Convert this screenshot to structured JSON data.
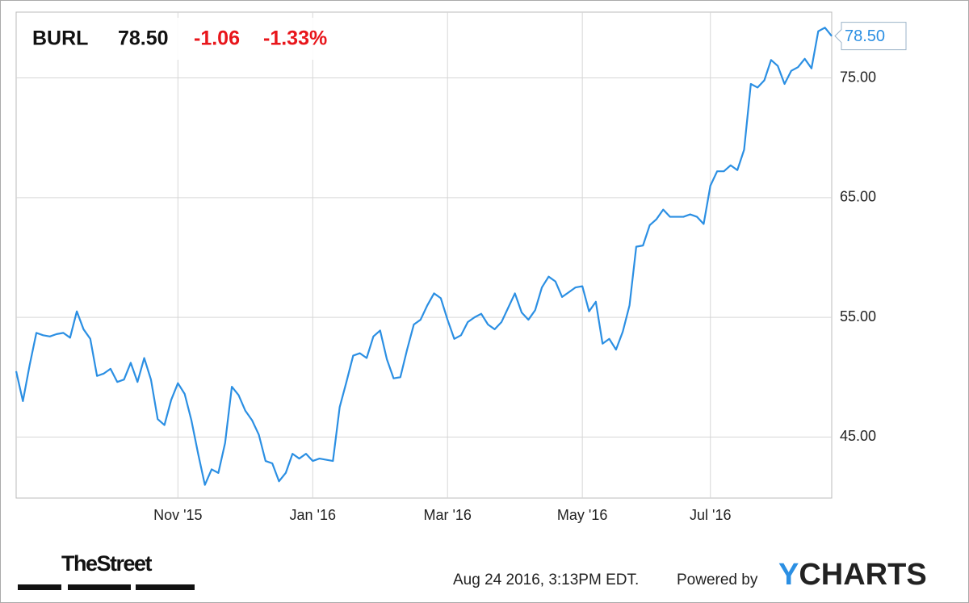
{
  "chart_data": {
    "type": "line",
    "quote": {
      "symbol": "BURL",
      "price": "78.50",
      "change": "-1.06",
      "change_percent": "-1.33%"
    },
    "categories": [
      null,
      null,
      null,
      null,
      null,
      null,
      null,
      null,
      null,
      null,
      null,
      null,
      null,
      null,
      null,
      null,
      null,
      null,
      null,
      null,
      null,
      null,
      null,
      null,
      "Nov '15",
      null,
      null,
      null,
      null,
      null,
      null,
      null,
      null,
      null,
      null,
      null,
      null,
      null,
      null,
      null,
      null,
      null,
      null,
      null,
      "Jan '16",
      null,
      null,
      null,
      null,
      null,
      null,
      null,
      null,
      null,
      null,
      null,
      null,
      null,
      null,
      null,
      null,
      null,
      null,
      null,
      "Mar '16",
      null,
      null,
      null,
      null,
      null,
      null,
      null,
      null,
      null,
      null,
      null,
      null,
      null,
      null,
      null,
      null,
      null,
      null,
      null,
      "May '16",
      null,
      null,
      null,
      null,
      null,
      null,
      null,
      null,
      null,
      null,
      null,
      null,
      null,
      null,
      null,
      null,
      null,
      null,
      "Jul '16",
      null,
      null,
      null,
      null,
      null,
      null,
      null,
      null,
      null,
      null,
      null,
      null,
      null,
      null,
      null,
      null,
      null,
      null
    ],
    "series": [
      {
        "name": "BURL",
        "color": "#2b8fe3",
        "values": [
          50.5,
          48.0,
          51.0,
          53.7,
          53.5,
          53.4,
          53.6,
          53.7,
          53.3,
          55.5,
          54.0,
          53.2,
          50.1,
          50.3,
          50.7,
          49.6,
          49.8,
          51.2,
          49.6,
          51.6,
          49.8,
          46.5,
          46.0,
          48.1,
          49.5,
          48.6,
          46.4,
          43.6,
          41.0,
          42.3,
          42.0,
          44.5,
          49.2,
          48.5,
          47.2,
          46.4,
          45.2,
          43.0,
          42.8,
          41.3,
          42.0,
          43.6,
          43.2,
          43.6,
          43.0,
          43.2,
          43.1,
          43.0,
          47.5,
          49.6,
          51.8,
          52.0,
          51.6,
          53.4,
          53.9,
          51.5,
          49.9,
          50.0,
          52.3,
          54.4,
          54.8,
          56.0,
          57.0,
          56.6,
          54.8,
          53.2,
          53.5,
          54.6,
          55.0,
          55.3,
          54.4,
          54.0,
          54.6,
          55.8,
          57.0,
          55.4,
          54.8,
          55.6,
          57.5,
          58.4,
          58.0,
          56.7,
          57.1,
          57.5,
          57.6,
          55.5,
          56.3,
          52.8,
          53.2,
          52.3,
          53.8,
          56.0,
          60.9,
          61.0,
          62.7,
          63.2,
          64.0,
          63.4,
          63.4,
          63.4,
          63.6,
          63.4,
          62.8,
          66.0,
          67.2,
          67.2,
          67.7,
          67.3,
          69.0,
          74.5,
          74.2,
          74.8,
          76.5,
          76.0,
          74.5,
          75.6,
          75.9,
          76.6,
          75.8,
          78.9,
          79.2,
          78.5
        ]
      }
    ],
    "ylim": [
      39.9,
      80.5
    ],
    "yticks": [
      {
        "value": 45,
        "label": "45.00"
      },
      {
        "value": 55,
        "label": "55.00"
      },
      {
        "value": 65,
        "label": "65.00"
      },
      {
        "value": 75,
        "label": "75.00"
      }
    ],
    "grid": true,
    "footer": {
      "publisher": "TheStreet",
      "timestamp": "Aug 24 2016, 3:13PM EDT.",
      "powered_by": "Powered by",
      "brand_first": "Y",
      "brand_rest": "CHARTS"
    }
  }
}
